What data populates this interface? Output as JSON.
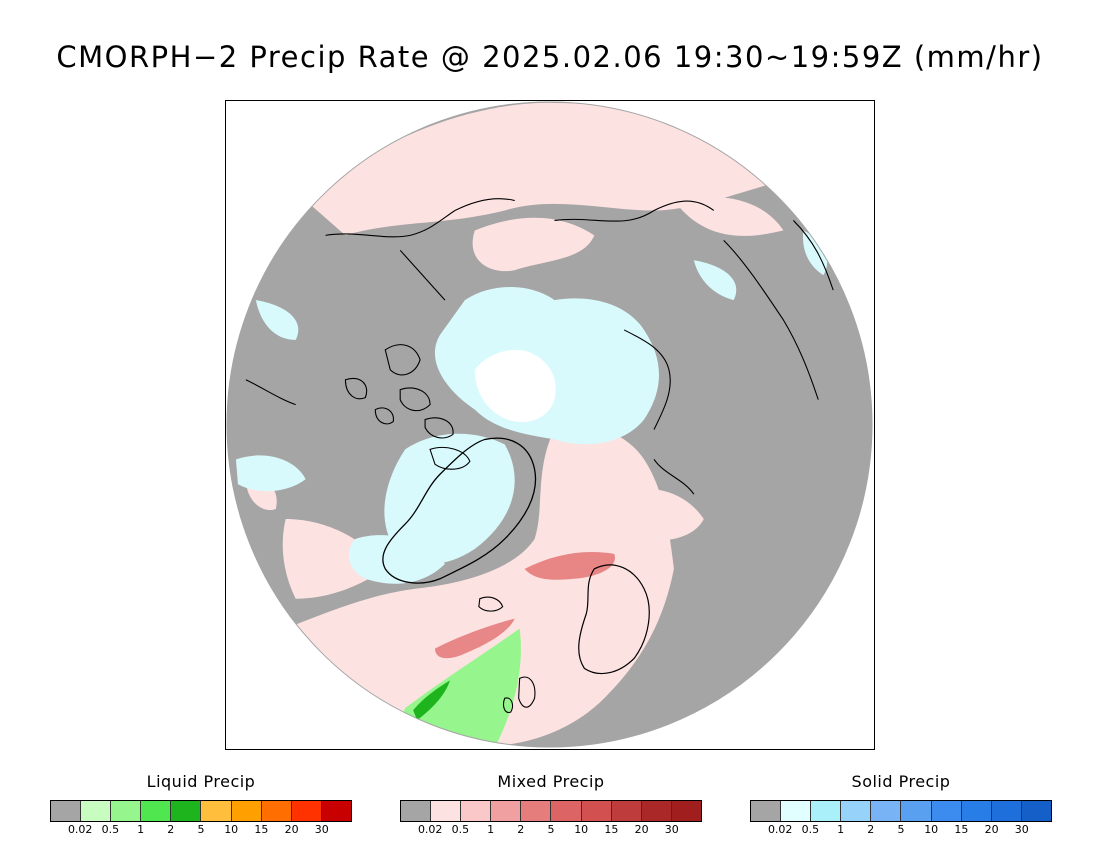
{
  "title": "CMORPH−2 Precip Rate @ 2025.02.06 19:30~19:59Z (mm/hr)",
  "colors": {
    "no_data_gray": "#a5a5a5",
    "mixed_light": "#fde2e2",
    "solid_light": "#d9fafc",
    "pole_hole": "#ffffff",
    "coastline": "#000000"
  },
  "legends": [
    {
      "title": "Liquid Precip",
      "colors": [
        "#a5a5a5",
        "#c8fcc0",
        "#96f58c",
        "#50e650",
        "#1eb41e",
        "#ffbe3c",
        "#ffa000",
        "#ff6e00",
        "#ff3200",
        "#c80000"
      ],
      "ticks": [
        "0.02",
        "0.5",
        "1",
        "2",
        "5",
        "10",
        "15",
        "20",
        "30"
      ]
    },
    {
      "title": "Mixed Precip",
      "colors": [
        "#a5a5a5",
        "#fde2e2",
        "#fac8c8",
        "#f0a0a0",
        "#e67d7d",
        "#dc6464",
        "#d25050",
        "#be3c3c",
        "#aa2828",
        "#a01e1e"
      ],
      "ticks": [
        "0.02",
        "0.5",
        "1",
        "2",
        "5",
        "10",
        "15",
        "20",
        "30"
      ]
    },
    {
      "title": "Solid Precip",
      "colors": [
        "#a5a5a5",
        "#e1ffff",
        "#aaf0fa",
        "#96d2fa",
        "#78b4f5",
        "#5aa0f0",
        "#3c8cf0",
        "#287de6",
        "#1e6edc",
        "#1460c8"
      ],
      "ticks": [
        "0.02",
        "0.5",
        "1",
        "2",
        "5",
        "10",
        "15",
        "20",
        "30"
      ]
    }
  ]
}
